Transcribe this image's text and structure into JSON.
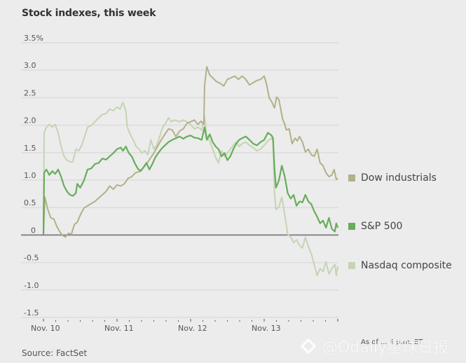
{
  "chart_data": {
    "type": "line",
    "title": "Stock indexes, this week",
    "xlabel": "",
    "ylabel": "",
    "x_ticks": [
      "Nov. 10",
      "Nov. 11",
      "Nov. 12",
      "Nov. 13"
    ],
    "x_range_days": [
      0,
      4
    ],
    "y_ticks": [
      "3.5%",
      "3.0",
      "2.5",
      "2.0",
      "1.5",
      "1.0",
      "0.5",
      "0",
      "-0.5",
      "-1.0",
      "-1.5"
    ],
    "y_tick_values": [
      3.5,
      3.0,
      2.5,
      2.0,
      1.5,
      1.0,
      0.5,
      0,
      -0.5,
      -1.0,
      -1.5
    ],
    "ylim": [
      -1.5,
      3.5
    ],
    "grid": true,
    "legend_position": "right",
    "series": [
      {
        "name": "Dow industrials",
        "color": "#b3b088",
        "points": [
          [
            0,
            0
          ],
          [
            0.02,
            0.68
          ],
          [
            0.06,
            0.45
          ],
          [
            0.1,
            0.3
          ],
          [
            0.14,
            0.28
          ],
          [
            0.18,
            0.15
          ],
          [
            0.22,
            0.05
          ],
          [
            0.26,
            -0.02
          ],
          [
            0.3,
            -0.05
          ],
          [
            0.34,
            0.02
          ],
          [
            0.38,
            0.0
          ],
          [
            0.42,
            0.18
          ],
          [
            0.46,
            0.22
          ],
          [
            0.5,
            0.35
          ],
          [
            0.55,
            0.48
          ],
          [
            0.6,
            0.52
          ],
          [
            0.65,
            0.56
          ],
          [
            0.7,
            0.6
          ],
          [
            0.75,
            0.66
          ],
          [
            0.8,
            0.72
          ],
          [
            0.85,
            0.78
          ],
          [
            0.9,
            0.88
          ],
          [
            0.95,
            0.82
          ],
          [
            1.0,
            0.9
          ],
          [
            1.05,
            0.88
          ],
          [
            1.1,
            0.92
          ],
          [
            1.15,
            1.02
          ],
          [
            1.2,
            1.05
          ],
          [
            1.25,
            1.12
          ],
          [
            1.3,
            1.14
          ],
          [
            1.35,
            1.2
          ],
          [
            1.4,
            1.28
          ],
          [
            1.45,
            1.38
          ],
          [
            1.5,
            1.48
          ],
          [
            1.55,
            1.6
          ],
          [
            1.6,
            1.72
          ],
          [
            1.65,
            1.82
          ],
          [
            1.7,
            1.92
          ],
          [
            1.75,
            1.9
          ],
          [
            1.8,
            1.78
          ],
          [
            1.85,
            1.88
          ],
          [
            1.9,
            1.92
          ],
          [
            1.95,
            2.02
          ],
          [
            2.0,
            2.05
          ],
          [
            2.05,
            2.08
          ],
          [
            2.1,
            2.0
          ],
          [
            2.14,
            2.06
          ],
          [
            2.18,
            2.0
          ],
          [
            2.19,
            2.7
          ],
          [
            2.22,
            3.05
          ],
          [
            2.26,
            2.9
          ],
          [
            2.3,
            2.85
          ],
          [
            2.35,
            2.78
          ],
          [
            2.4,
            2.75
          ],
          [
            2.45,
            2.7
          ],
          [
            2.5,
            2.82
          ],
          [
            2.55,
            2.85
          ],
          [
            2.6,
            2.88
          ],
          [
            2.65,
            2.82
          ],
          [
            2.7,
            2.88
          ],
          [
            2.75,
            2.82
          ],
          [
            2.8,
            2.72
          ],
          [
            2.85,
            2.76
          ],
          [
            2.9,
            2.8
          ],
          [
            2.95,
            2.82
          ],
          [
            3.0,
            2.88
          ],
          [
            3.03,
            2.75
          ],
          [
            3.07,
            2.48
          ],
          [
            3.1,
            2.42
          ],
          [
            3.14,
            2.3
          ],
          [
            3.17,
            2.5
          ],
          [
            3.2,
            2.45
          ],
          [
            3.25,
            2.1
          ],
          [
            3.28,
            2.0
          ],
          [
            3.3,
            1.9
          ],
          [
            3.34,
            1.92
          ],
          [
            3.38,
            1.65
          ],
          [
            3.42,
            1.75
          ],
          [
            3.45,
            1.7
          ],
          [
            3.48,
            1.78
          ],
          [
            3.52,
            1.68
          ],
          [
            3.56,
            1.5
          ],
          [
            3.6,
            1.55
          ],
          [
            3.64,
            1.45
          ],
          [
            3.68,
            1.42
          ],
          [
            3.72,
            1.55
          ],
          [
            3.76,
            1.3
          ],
          [
            3.8,
            1.25
          ],
          [
            3.84,
            1.12
          ],
          [
            3.88,
            1.05
          ],
          [
            3.92,
            1.08
          ],
          [
            3.95,
            1.18
          ],
          [
            3.98,
            1.0
          ],
          [
            4.0,
            1.02
          ]
        ]
      },
      {
        "name": "S&P 500",
        "color": "#67ad5b",
        "points": [
          [
            0,
            0
          ],
          [
            0.01,
            1.12
          ],
          [
            0.04,
            1.18
          ],
          [
            0.08,
            1.08
          ],
          [
            0.12,
            1.15
          ],
          [
            0.16,
            1.1
          ],
          [
            0.2,
            1.18
          ],
          [
            0.24,
            1.05
          ],
          [
            0.28,
            0.88
          ],
          [
            0.32,
            0.78
          ],
          [
            0.36,
            0.72
          ],
          [
            0.4,
            0.7
          ],
          [
            0.44,
            0.75
          ],
          [
            0.46,
            0.92
          ],
          [
            0.5,
            0.85
          ],
          [
            0.55,
            0.98
          ],
          [
            0.6,
            1.18
          ],
          [
            0.65,
            1.2
          ],
          [
            0.7,
            1.28
          ],
          [
            0.75,
            1.3
          ],
          [
            0.8,
            1.38
          ],
          [
            0.85,
            1.36
          ],
          [
            0.9,
            1.42
          ],
          [
            0.95,
            1.48
          ],
          [
            1.0,
            1.55
          ],
          [
            1.05,
            1.58
          ],
          [
            1.08,
            1.52
          ],
          [
            1.12,
            1.6
          ],
          [
            1.16,
            1.48
          ],
          [
            1.2,
            1.42
          ],
          [
            1.24,
            1.3
          ],
          [
            1.28,
            1.2
          ],
          [
            1.32,
            1.15
          ],
          [
            1.36,
            1.22
          ],
          [
            1.4,
            1.3
          ],
          [
            1.44,
            1.18
          ],
          [
            1.48,
            1.28
          ],
          [
            1.52,
            1.4
          ],
          [
            1.56,
            1.48
          ],
          [
            1.6,
            1.55
          ],
          [
            1.65,
            1.62
          ],
          [
            1.7,
            1.68
          ],
          [
            1.75,
            1.72
          ],
          [
            1.8,
            1.75
          ],
          [
            1.85,
            1.78
          ],
          [
            1.9,
            1.74
          ],
          [
            1.95,
            1.78
          ],
          [
            2.0,
            1.8
          ],
          [
            2.05,
            1.76
          ],
          [
            2.1,
            1.75
          ],
          [
            2.15,
            1.72
          ],
          [
            2.19,
            1.95
          ],
          [
            2.22,
            1.72
          ],
          [
            2.26,
            1.82
          ],
          [
            2.3,
            1.68
          ],
          [
            2.34,
            1.6
          ],
          [
            2.38,
            1.55
          ],
          [
            2.42,
            1.42
          ],
          [
            2.46,
            1.48
          ],
          [
            2.5,
            1.35
          ],
          [
            2.54,
            1.42
          ],
          [
            2.58,
            1.55
          ],
          [
            2.62,
            1.65
          ],
          [
            2.66,
            1.72
          ],
          [
            2.7,
            1.75
          ],
          [
            2.75,
            1.78
          ],
          [
            2.8,
            1.72
          ],
          [
            2.85,
            1.65
          ],
          [
            2.9,
            1.62
          ],
          [
            2.95,
            1.68
          ],
          [
            3.0,
            1.72
          ],
          [
            3.05,
            1.85
          ],
          [
            3.1,
            1.8
          ],
          [
            3.12,
            1.75
          ],
          [
            3.14,
            1.2
          ],
          [
            3.16,
            0.85
          ],
          [
            3.2,
            0.98
          ],
          [
            3.24,
            1.25
          ],
          [
            3.28,
            1.05
          ],
          [
            3.32,
            0.75
          ],
          [
            3.36,
            0.65
          ],
          [
            3.4,
            0.72
          ],
          [
            3.44,
            0.52
          ],
          [
            3.48,
            0.6
          ],
          [
            3.52,
            0.58
          ],
          [
            3.56,
            0.72
          ],
          [
            3.6,
            0.6
          ],
          [
            3.64,
            0.55
          ],
          [
            3.68,
            0.42
          ],
          [
            3.72,
            0.32
          ],
          [
            3.76,
            0.2
          ],
          [
            3.8,
            0.25
          ],
          [
            3.84,
            0.12
          ],
          [
            3.88,
            0.3
          ],
          [
            3.92,
            0.1
          ],
          [
            3.96,
            0.05
          ],
          [
            3.98,
            0.2
          ],
          [
            4.0,
            0.12
          ]
        ]
      },
      {
        "name": "Nasdaq composite",
        "color": "#c4d4b4",
        "points": [
          [
            0,
            0
          ],
          [
            0.01,
            1.85
          ],
          [
            0.04,
            1.95
          ],
          [
            0.08,
            2.0
          ],
          [
            0.12,
            1.95
          ],
          [
            0.16,
            2.0
          ],
          [
            0.2,
            1.85
          ],
          [
            0.24,
            1.6
          ],
          [
            0.28,
            1.42
          ],
          [
            0.32,
            1.35
          ],
          [
            0.36,
            1.32
          ],
          [
            0.4,
            1.32
          ],
          [
            0.44,
            1.55
          ],
          [
            0.48,
            1.52
          ],
          [
            0.52,
            1.62
          ],
          [
            0.56,
            1.78
          ],
          [
            0.6,
            1.95
          ],
          [
            0.65,
            1.98
          ],
          [
            0.7,
            2.05
          ],
          [
            0.75,
            2.12
          ],
          [
            0.8,
            2.18
          ],
          [
            0.85,
            2.2
          ],
          [
            0.9,
            2.28
          ],
          [
            0.95,
            2.25
          ],
          [
            1.0,
            2.32
          ],
          [
            1.04,
            2.28
          ],
          [
            1.08,
            2.4
          ],
          [
            1.12,
            2.25
          ],
          [
            1.14,
            1.95
          ],
          [
            1.18,
            1.82
          ],
          [
            1.22,
            1.72
          ],
          [
            1.26,
            1.6
          ],
          [
            1.3,
            1.55
          ],
          [
            1.34,
            1.48
          ],
          [
            1.38,
            1.52
          ],
          [
            1.42,
            1.45
          ],
          [
            1.46,
            1.72
          ],
          [
            1.5,
            1.55
          ],
          [
            1.54,
            1.62
          ],
          [
            1.58,
            1.78
          ],
          [
            1.62,
            1.95
          ],
          [
            1.66,
            2.02
          ],
          [
            1.7,
            2.12
          ],
          [
            1.74,
            2.05
          ],
          [
            1.78,
            2.08
          ],
          [
            1.85,
            2.05
          ],
          [
            1.9,
            2.08
          ],
          [
            1.95,
            2.05
          ],
          [
            2.0,
            2.0
          ],
          [
            2.05,
            1.92
          ],
          [
            2.1,
            1.95
          ],
          [
            2.15,
            1.9
          ],
          [
            2.19,
            2.15
          ],
          [
            2.22,
            1.78
          ],
          [
            2.26,
            1.7
          ],
          [
            2.3,
            1.55
          ],
          [
            2.34,
            1.4
          ],
          [
            2.38,
            1.3
          ],
          [
            2.42,
            1.52
          ],
          [
            2.46,
            1.42
          ],
          [
            2.5,
            1.48
          ],
          [
            2.54,
            1.55
          ],
          [
            2.58,
            1.62
          ],
          [
            2.62,
            1.68
          ],
          [
            2.66,
            1.6
          ],
          [
            2.7,
            1.65
          ],
          [
            2.75,
            1.68
          ],
          [
            2.8,
            1.62
          ],
          [
            2.85,
            1.58
          ],
          [
            2.9,
            1.52
          ],
          [
            2.95,
            1.55
          ],
          [
            3.0,
            1.62
          ],
          [
            3.05,
            1.7
          ],
          [
            3.1,
            1.75
          ],
          [
            3.12,
            1.7
          ],
          [
            3.14,
            0.75
          ],
          [
            3.16,
            0.45
          ],
          [
            3.2,
            0.5
          ],
          [
            3.24,
            0.68
          ],
          [
            3.28,
            0.35
          ],
          [
            3.32,
            0.0
          ],
          [
            3.36,
            -0.05
          ],
          [
            3.4,
            -0.15
          ],
          [
            3.44,
            -0.1
          ],
          [
            3.48,
            -0.2
          ],
          [
            3.52,
            -0.25
          ],
          [
            3.56,
            -0.05
          ],
          [
            3.6,
            -0.22
          ],
          [
            3.64,
            -0.35
          ],
          [
            3.68,
            -0.55
          ],
          [
            3.72,
            -0.75
          ],
          [
            3.76,
            -0.62
          ],
          [
            3.8,
            -0.68
          ],
          [
            3.84,
            -0.5
          ],
          [
            3.88,
            -0.72
          ],
          [
            3.92,
            -0.62
          ],
          [
            3.96,
            -0.55
          ],
          [
            3.98,
            -0.75
          ],
          [
            4.0,
            -0.58
          ]
        ]
      }
    ],
    "source": "Source: FactSet",
    "note": "As of ... 4 p.m. ET"
  },
  "watermark": "@Odaily星球日报"
}
